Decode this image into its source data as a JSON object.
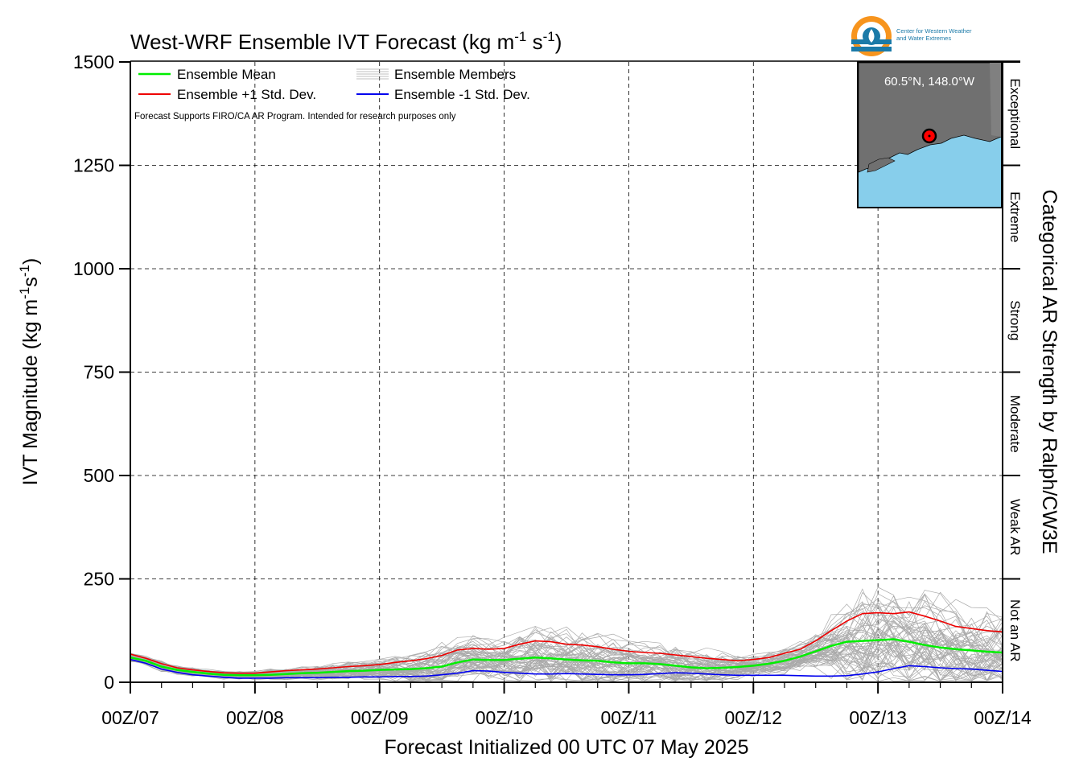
{
  "chart_data": {
    "type": "line",
    "title": "West-WRF Ensemble IVT Forecast (kg m",
    "title_units": {
      "sup1": "-1",
      "mid": " s",
      "sup2": "-1",
      "end": ")"
    },
    "xlabel": "Forecast Initialized 00 UTC 07 May 2025",
    "ylabel": "IVT Magnitude (kg m",
    "ylabel_units": {
      "sup1": "-1",
      "mid": "s",
      "sup2": "-1",
      "end": ")"
    },
    "right_label": "Categorical AR Strength by Ralph/CW3E",
    "x_ticks": [
      "00Z/07",
      "00Z/08",
      "00Z/09",
      "00Z/10",
      "00Z/11",
      "00Z/12",
      "00Z/13",
      "00Z/14"
    ],
    "x_range_days": [
      0,
      7
    ],
    "y_ticks": [
      0,
      250,
      500,
      750,
      1000,
      1250,
      1500
    ],
    "ylim": [
      0,
      1500
    ],
    "grid": true,
    "legend": {
      "placement": "top-left",
      "entries": [
        {
          "label": "Ensemble Mean",
          "color": "#00ee00"
        },
        {
          "label": "Ensemble +1 Std. Dev.",
          "color": "#ee0000"
        },
        {
          "label": "Ensemble Members",
          "color": "#aaaaaa"
        },
        {
          "label": "Ensemble -1 Std. Dev.",
          "color": "#0000ee"
        }
      ]
    },
    "note": "Forecast Supports FIRO/CA AR Program. Intended for research purposes only",
    "ar_categories": [
      {
        "label": "Not an AR",
        "from": 0,
        "to": 250
      },
      {
        "label": "Weak AR",
        "from": 250,
        "to": 500
      },
      {
        "label": "Moderate",
        "from": 500,
        "to": 750
      },
      {
        "label": "Strong",
        "from": 750,
        "to": 1000
      },
      {
        "label": "Extreme",
        "from": 1000,
        "to": 1250
      },
      {
        "label": "Exceptional",
        "from": 1250,
        "to": 1500
      }
    ],
    "x_days": [
      0,
      0.125,
      0.25,
      0.375,
      0.5,
      0.625,
      0.75,
      0.875,
      1.0,
      1.125,
      1.25,
      1.375,
      1.5,
      1.625,
      1.75,
      1.875,
      2.0,
      2.125,
      2.25,
      2.375,
      2.5,
      2.625,
      2.75,
      2.875,
      3.0,
      3.125,
      3.25,
      3.375,
      3.5,
      3.625,
      3.75,
      3.875,
      4.0,
      4.125,
      4.25,
      4.375,
      4.5,
      4.625,
      4.75,
      4.875,
      5.0,
      5.125,
      5.25,
      5.375,
      5.5,
      5.625,
      5.75,
      5.875,
      6.0,
      6.125,
      6.25,
      6.375,
      6.5,
      6.625,
      6.75,
      6.875,
      7.0
    ],
    "series": [
      {
        "name": "Ensemble +1 Std. Dev.",
        "color": "#ee0000",
        "values": [
          68,
          58,
          45,
          35,
          30,
          26,
          23,
          22,
          22,
          25,
          28,
          30,
          32,
          35,
          38,
          40,
          43,
          48,
          52,
          57,
          65,
          78,
          82,
          80,
          82,
          92,
          100,
          98,
          92,
          90,
          86,
          80,
          75,
          72,
          70,
          66,
          62,
          58,
          55,
          52,
          55,
          60,
          70,
          80,
          100,
          125,
          148,
          166,
          168,
          166,
          170,
          160,
          148,
          135,
          130,
          125,
          122
        ]
      },
      {
        "name": "Ensemble Mean",
        "color": "#00ee00",
        "values": [
          60,
          52,
          38,
          30,
          25,
          21,
          18,
          17,
          17,
          18,
          20,
          22,
          23,
          25,
          27,
          28,
          30,
          31,
          32,
          34,
          38,
          48,
          55,
          54,
          54,
          57,
          60,
          58,
          55,
          53,
          52,
          48,
          46,
          46,
          44,
          40,
          36,
          34,
          35,
          37,
          40,
          45,
          52,
          62,
          75,
          88,
          98,
          100,
          102,
          104,
          98,
          90,
          84,
          80,
          77,
          74,
          72
        ]
      },
      {
        "name": "Ensemble -1 Std. Dev.",
        "color": "#0000ee",
        "values": [
          55,
          46,
          32,
          24,
          18,
          15,
          12,
          10,
          10,
          10,
          11,
          11,
          11,
          12,
          12,
          13,
          13,
          14,
          14,
          15,
          18,
          22,
          28,
          27,
          24,
          22,
          20,
          20,
          21,
          20,
          19,
          18,
          18,
          19,
          21,
          23,
          22,
          20,
          18,
          17,
          17,
          17,
          17,
          16,
          15,
          15,
          16,
          20,
          25,
          33,
          40,
          38,
          35,
          33,
          32,
          29,
          26
        ]
      }
    ],
    "members": {
      "name": "Ensemble Members",
      "color": "#aaaaaa",
      "count": 60
    }
  },
  "inset_map": {
    "label": "60.5°N, 148.0°W",
    "land_color": "#707070",
    "water_color": "#87ceeb"
  },
  "logo": {
    "line1": "Center for Western Weather",
    "line2": "and Water Extremes"
  }
}
